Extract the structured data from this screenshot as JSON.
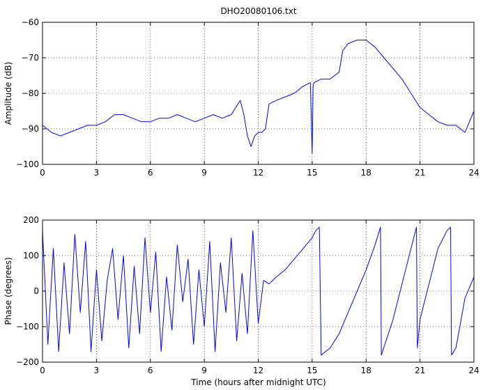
{
  "chart_data": [
    {
      "type": "line",
      "title": "DHO20080106.txt",
      "xlabel": "",
      "ylabel": "Amplitude (dB)",
      "xlim": [
        0,
        24
      ],
      "ylim": [
        -100,
        -60
      ],
      "xticks": [
        0,
        3,
        6,
        9,
        12,
        15,
        18,
        21,
        24
      ],
      "yticks": [
        -100,
        -90,
        -80,
        -70,
        -60
      ],
      "grid": true,
      "line_color": "#0000ff",
      "series": [
        {
          "x": [
            0,
            0.5,
            1,
            1.5,
            2,
            2.5,
            3,
            3.5,
            4,
            4.5,
            5,
            5.5,
            6,
            6.5,
            7,
            7.5,
            8,
            8.5,
            9,
            9.5,
            10,
            10.5,
            11,
            11.2,
            11.4,
            11.6,
            11.8,
            12,
            12.2,
            12.4,
            12.6,
            13,
            13.5,
            14,
            14.5,
            14.9,
            15,
            15.05,
            15.1,
            15.5,
            16,
            16.5,
            16.7,
            17,
            17.5,
            18,
            18.5,
            19,
            19.5,
            20,
            20.5,
            21,
            21.5,
            22,
            22.5,
            23,
            23.5,
            24
          ],
          "y": [
            -89,
            -91,
            -92,
            -91,
            -90,
            -89,
            -89,
            -88,
            -86,
            -86,
            -87,
            -88,
            -88,
            -87,
            -87,
            -86,
            -87,
            -88,
            -87,
            -86,
            -87,
            -86,
            -82,
            -86,
            -92,
            -95,
            -92,
            -91,
            -91,
            -90,
            -83,
            -82,
            -81,
            -80,
            -78,
            -77,
            -97,
            -78,
            -77,
            -76,
            -76,
            -74,
            -68,
            -66,
            -65,
            -65,
            -67,
            -70,
            -73,
            -76,
            -80,
            -84,
            -86,
            -88,
            -89,
            -89,
            -91,
            -85
          ]
        }
      ]
    },
    {
      "type": "line",
      "title": "",
      "xlabel": "Time (hours after midnight UTC)",
      "ylabel": "Phase (degrees)",
      "xlim": [
        0,
        24
      ],
      "ylim": [
        -200,
        200
      ],
      "xticks": [
        0,
        3,
        6,
        9,
        12,
        15,
        18,
        21,
        24
      ],
      "yticks": [
        -200,
        -100,
        0,
        100,
        200
      ],
      "grid": true,
      "line_color": "#0000ff",
      "series": [
        {
          "x": [
            0,
            0.3,
            0.6,
            0.9,
            1.2,
            1.5,
            1.8,
            2.1,
            2.4,
            2.7,
            3,
            3.3,
            3.6,
            3.9,
            4.2,
            4.5,
            4.8,
            5.1,
            5.4,
            5.7,
            6,
            6.3,
            6.6,
            6.9,
            7.2,
            7.5,
            7.8,
            8.1,
            8.4,
            8.7,
            9,
            9.3,
            9.6,
            9.9,
            10.2,
            10.5,
            10.8,
            11.1,
            11.4,
            11.7,
            12,
            12.3,
            12.6,
            13,
            13.5,
            14,
            14.5,
            15,
            15.2,
            15.4,
            15.5,
            16,
            16.5,
            17,
            17.5,
            18,
            18.5,
            18.8,
            18.85,
            19.5,
            20,
            20.5,
            20.8,
            20.85,
            21,
            21.5,
            22,
            22.5,
            22.7,
            22.75,
            23,
            23.5,
            24
          ],
          "y": [
            170,
            -150,
            120,
            -170,
            80,
            -120,
            160,
            -60,
            140,
            -170,
            60,
            -140,
            30,
            120,
            -80,
            100,
            -160,
            70,
            -120,
            150,
            -60,
            110,
            -170,
            40,
            -110,
            130,
            -30,
            90,
            -150,
            60,
            -100,
            140,
            -170,
            80,
            -60,
            150,
            -140,
            50,
            -120,
            170,
            -90,
            30,
            20,
            40,
            60,
            90,
            120,
            150,
            170,
            180,
            -180,
            -160,
            -120,
            -60,
            0,
            60,
            130,
            180,
            -180,
            -80,
            20,
            120,
            180,
            -160,
            -80,
            20,
            120,
            170,
            180,
            -180,
            -160,
            -20,
            40
          ]
        }
      ]
    }
  ]
}
